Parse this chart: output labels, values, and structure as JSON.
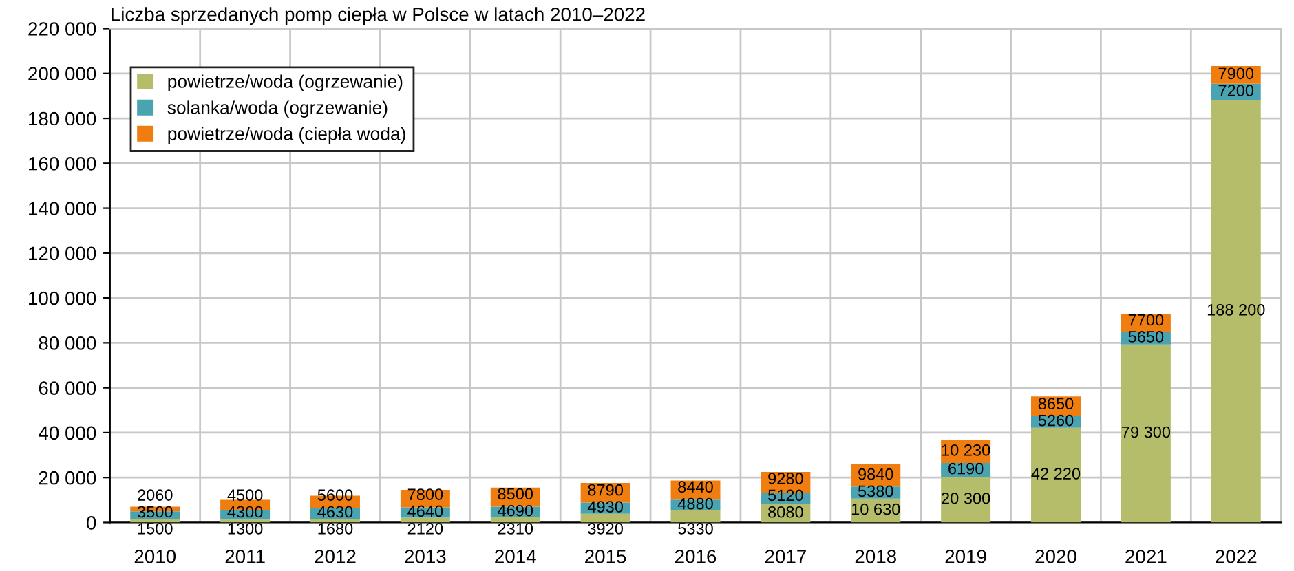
{
  "chart_data": {
    "type": "bar",
    "stacked": true,
    "title": "Liczba sprzedanych pomp ciepła w Polsce w latach 2010–2022",
    "categories": [
      "2010",
      "2011",
      "2012",
      "2013",
      "2014",
      "2015",
      "2016",
      "2017",
      "2018",
      "2019",
      "2020",
      "2021",
      "2022"
    ],
    "series": [
      {
        "name": "powietrze/woda (ogrzewanie)",
        "color": "#b5bd6b",
        "values": [
          1500,
          1300,
          1680,
          2120,
          2310,
          3920,
          5330,
          8080,
          10630,
          20300,
          42220,
          79300,
          188200
        ],
        "value_labels": [
          "1500",
          "1300",
          "1680",
          "2120",
          "2310",
          "3920",
          "5330",
          "8080",
          "10 630",
          "20 300",
          "42 220",
          "79 300",
          "188 200"
        ]
      },
      {
        "name": "solanka/woda (ogrzewanie)",
        "color": "#4aa3b0",
        "values": [
          3500,
          4300,
          4630,
          4640,
          4690,
          4930,
          4880,
          5120,
          5380,
          6190,
          5260,
          5650,
          7200
        ],
        "value_labels": [
          "3500",
          "4300",
          "4630",
          "4640",
          "4690",
          "4930",
          "4880",
          "5120",
          "5380",
          "6190",
          "5260",
          "5650",
          "7200"
        ]
      },
      {
        "name": "powietrze/woda (ciepła woda)",
        "color": "#f07d10",
        "values": [
          2060,
          4500,
          5600,
          7800,
          8500,
          8790,
          8440,
          9280,
          9840,
          10230,
          8650,
          7700,
          7900
        ],
        "value_labels": [
          "2060",
          "4500",
          "5600",
          "7800",
          "8500",
          "8790",
          "8440",
          "9280",
          "9840",
          "10 230",
          "8650",
          "7700",
          "7900"
        ]
      }
    ],
    "ylim": [
      0,
      220000
    ],
    "yticks": [
      {
        "value": 0,
        "label": "0"
      },
      {
        "value": 20000,
        "label": "20 000"
      },
      {
        "value": 40000,
        "label": "40 000"
      },
      {
        "value": 60000,
        "label": "60 000"
      },
      {
        "value": 80000,
        "label": "80 000"
      },
      {
        "value": 100000,
        "label": "100 000"
      },
      {
        "value": 120000,
        "label": "120 000"
      },
      {
        "value": 140000,
        "label": "140 000"
      },
      {
        "value": 160000,
        "label": "160 000"
      },
      {
        "value": 180000,
        "label": "180 000"
      },
      {
        "value": 200000,
        "label": "200 000"
      },
      {
        "value": 220000,
        "label": "220 000"
      }
    ],
    "grid": true,
    "legend": "top left"
  }
}
